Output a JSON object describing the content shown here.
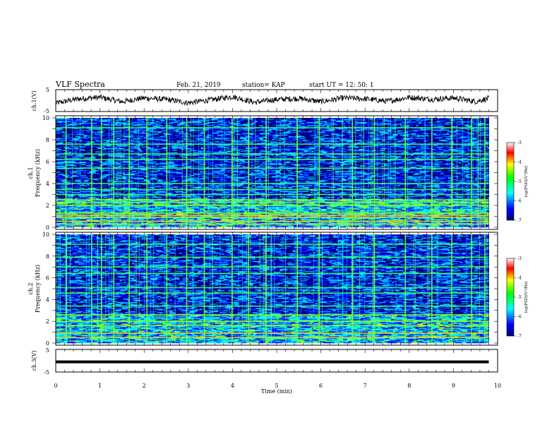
{
  "header": {
    "title": "VLF Spectra",
    "date": "Feb. 21, 2019",
    "station": "station= KAP",
    "start": "start  UT =   12: 50: 1"
  },
  "colors": {
    "colormap": [
      "#00007a",
      "#0000ff",
      "#00ffff",
      "#00ff00",
      "#ffff00",
      "#ff0000",
      "#ffffff"
    ]
  },
  "chart_data": [
    {
      "type": "line",
      "panel": "ch.1 waveform",
      "ylabel": "ch.1(V)",
      "ylim": [
        -5,
        5
      ],
      "yticks": [
        "5",
        "-5"
      ],
      "xlim": [
        0,
        10
      ],
      "series": [
        {
          "x": [
            0,
            0.5,
            1,
            1.5,
            2,
            2.5,
            3,
            3.5,
            4,
            4.5,
            5,
            5.5,
            6,
            6.5,
            7,
            7.5,
            8,
            8.5,
            9,
            9.5,
            9.8
          ],
          "values": [
            -1.2,
            0.8,
            1.5,
            -0.5,
            1.2,
            0.5,
            -1.0,
            0.3,
            1.8,
            -0.8,
            0.5,
            1.0,
            -0.5,
            1.2,
            0.8,
            -0.3,
            1.5,
            0.6,
            1.2,
            -0.4,
            1.0
          ]
        }
      ]
    },
    {
      "type": "heatmap",
      "panel": "ch.1 spectrogram",
      "ylabel": "Frequency (kHz)",
      "ylabel2": "ch.1",
      "ylim": [
        0,
        10
      ],
      "yticks": [
        "0",
        "2",
        "4",
        "6",
        "8",
        "10"
      ],
      "xlim": [
        0,
        10
      ],
      "colorbar": {
        "label": "log(PSD)(V²/Hz)",
        "ticks": [
          "-3",
          "-4",
          "-5",
          "-6",
          "-7"
        ],
        "range": [
          -7,
          -3
        ]
      },
      "bright_lines_khz": [
        0.3,
        0.55,
        0.9,
        1.1,
        1.3,
        2.0,
        2.3,
        2.5,
        3.0,
        3.45,
        4.0,
        5.4,
        6.2,
        6.7,
        7.6,
        9.1
      ]
    },
    {
      "type": "heatmap",
      "panel": "ch.2 spectrogram",
      "ylabel": "Frequency (kHz)",
      "ylabel2": "ch.2",
      "ylim": [
        0,
        10
      ],
      "yticks": [
        "0",
        "2",
        "4",
        "6",
        "8",
        "10"
      ],
      "xlim": [
        0,
        10
      ],
      "colorbar": {
        "label": "log(PSD)(V²/Hz)",
        "ticks": [
          "-3",
          "-4",
          "-5",
          "-6",
          "-7"
        ],
        "range": [
          -7,
          -3
        ]
      },
      "bright_lines_khz": [
        0.5,
        0.9,
        1.6,
        2.0,
        2.6,
        3.4,
        4.6,
        5.1,
        6.4,
        7.0,
        7.9,
        9.1
      ]
    },
    {
      "type": "line",
      "panel": "ch.3 waveform",
      "ylabel": "ch.3(V)",
      "ylim": [
        -5,
        5
      ],
      "yticks": [
        "5",
        "-5"
      ],
      "xlim": [
        0,
        10
      ],
      "series": [
        {
          "x": [
            0,
            9.8
          ],
          "values": [
            -0.5,
            -0.5
          ]
        }
      ]
    }
  ],
  "xaxis": {
    "label": "Time (min)",
    "ticks": [
      "0",
      "1",
      "2",
      "3",
      "4",
      "5",
      "6",
      "7",
      "8",
      "9",
      "10"
    ]
  },
  "bursts_min": [
    0.22,
    0.8,
    1.02,
    1.3,
    1.65,
    2.05,
    2.5,
    2.95,
    3.35,
    3.98,
    4.35,
    4.75,
    5.45,
    5.95,
    6.7,
    7.2,
    7.9,
    8.5,
    8.95,
    9.4,
    9.7
  ]
}
